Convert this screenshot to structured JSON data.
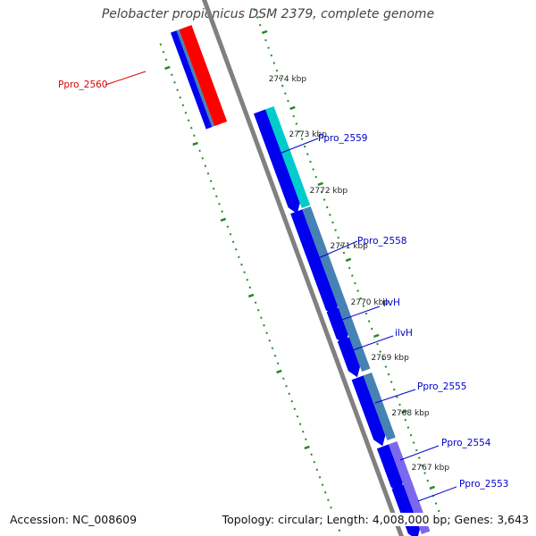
{
  "title": "Pelobacter propionicus DSM 2379, complete genome",
  "footer": {
    "accession": "Accession: NC_008609",
    "stats": "Topology: circular; Length: 4,008,000 bp; Genes: 3,643"
  },
  "colors": {
    "forward_gene": "#0000ee",
    "reverse_gene": "#ff0000",
    "cog_steelblue": "#4682b4",
    "cog_cyan": "#00cccc",
    "cog_purple": "#7b68ee",
    "backbone": "#808080",
    "ticks": "#228b22",
    "label_forward": "#0000cc",
    "label_reverse": "#dd0000"
  },
  "kbp_markers": [
    {
      "label": "2774 kbp",
      "pos_kbp": 2774
    },
    {
      "label": "2773 kbp",
      "pos_kbp": 2773
    },
    {
      "label": "2772 kbp",
      "pos_kbp": 2772
    },
    {
      "label": "2771 kbp",
      "pos_kbp": 2771
    },
    {
      "label": "2770 kbp",
      "pos_kbp": 2770
    },
    {
      "label": "2769 kbp",
      "pos_kbp": 2769
    },
    {
      "label": "2768 kbp",
      "pos_kbp": 2768
    },
    {
      "label": "2767 kbp",
      "pos_kbp": 2767
    }
  ],
  "gene_labels": [
    {
      "name": "Ppro_2560",
      "strand": "reverse"
    },
    {
      "name": "Ppro_2559",
      "strand": "forward"
    },
    {
      "name": "Ppro_2558",
      "strand": "forward"
    },
    {
      "name": "ilvH",
      "strand": "forward"
    },
    {
      "name": "ilvH",
      "strand": "forward"
    },
    {
      "name": "Ppro_2555",
      "strand": "forward"
    },
    {
      "name": "Ppro_2554",
      "strand": "forward"
    },
    {
      "name": "Ppro_2553",
      "strand": "forward"
    }
  ]
}
